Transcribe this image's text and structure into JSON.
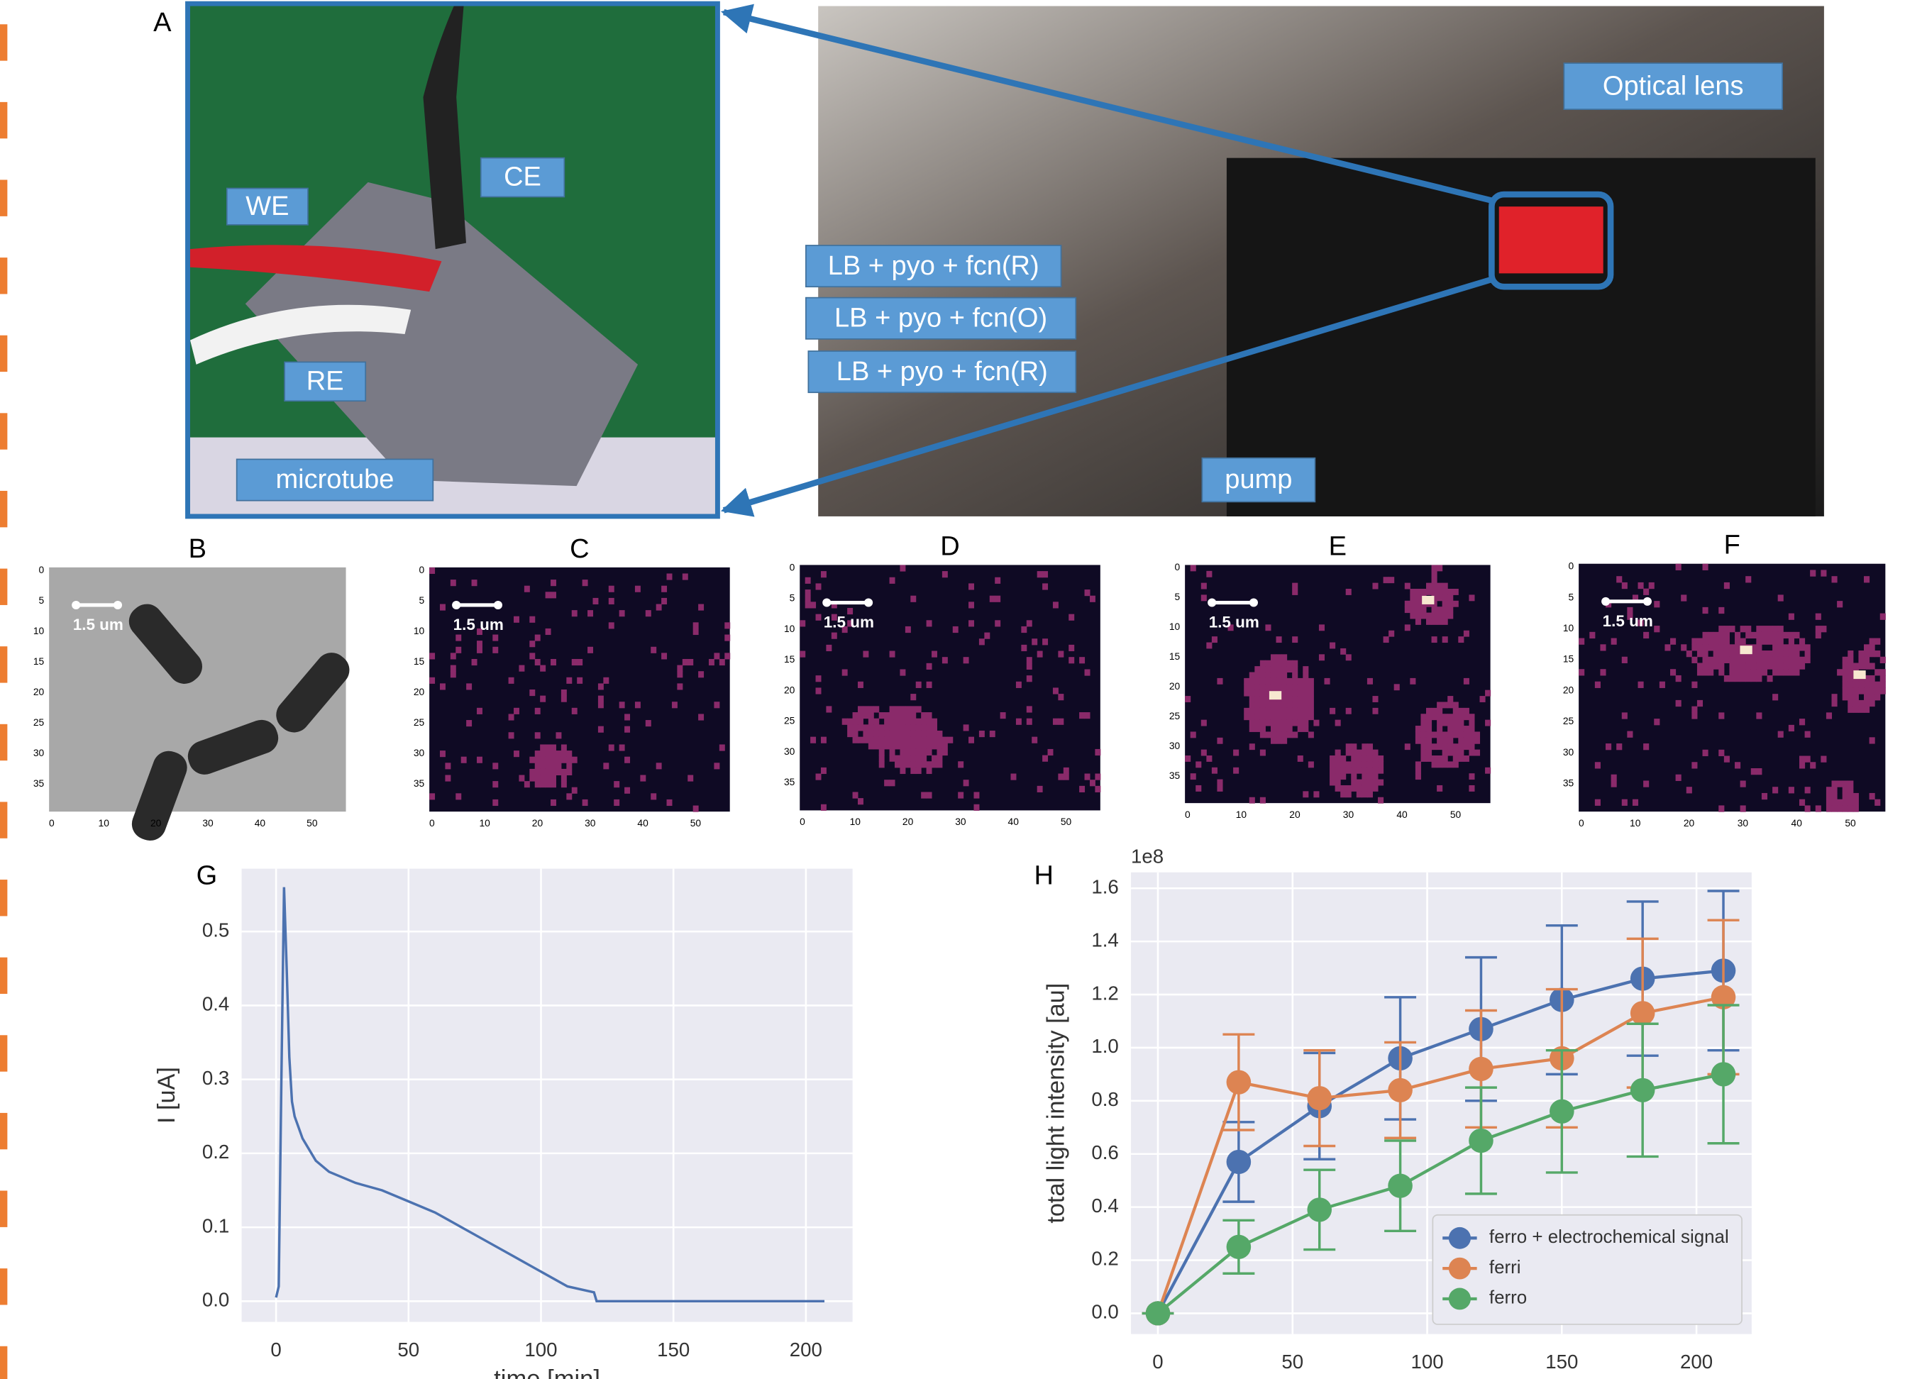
{
  "panel_a": {
    "letter": "A",
    "we": "WE",
    "ce": "CE",
    "re": "RE",
    "microtube": "microtube",
    "optical_lens": "Optical lens",
    "syringes": [
      "LB + pyo + fcn(R)",
      "LB + pyo + fcn(O)",
      "LB + pyo + fcn(R)"
    ],
    "pump": "pump"
  },
  "image_panels": {
    "letters": [
      "B",
      "C",
      "D",
      "E",
      "F"
    ],
    "scale_bar": "1.5 um",
    "xticks": [
      "0",
      "10",
      "20",
      "30",
      "40",
      "50"
    ],
    "yticks": [
      "0",
      "5",
      "10",
      "15",
      "20",
      "25",
      "30",
      "35"
    ]
  },
  "chart_data": [
    {
      "type": "line",
      "letter": "G",
      "xlabel": "time [min]",
      "ylabel": "I [uA]",
      "color": "#4c72b0",
      "x": [
        0,
        1,
        2,
        3,
        4,
        5,
        6,
        7,
        10,
        15,
        20,
        30,
        40,
        50,
        60,
        70,
        80,
        90,
        100,
        110,
        120,
        121,
        150,
        207
      ],
      "values": [
        0.005,
        0.02,
        0.3,
        0.56,
        0.45,
        0.33,
        0.27,
        0.25,
        0.22,
        0.19,
        0.175,
        0.16,
        0.15,
        0.135,
        0.12,
        0.1,
        0.08,
        0.06,
        0.04,
        0.02,
        0.012,
        0,
        0,
        0
      ],
      "xlim": [
        -13,
        217.6
      ],
      "ylim": [
        -0.028,
        0.585
      ],
      "xticks": [
        0,
        50,
        100,
        150,
        200
      ],
      "yticks": [
        {
          "value": 0,
          "label": "0.0"
        },
        0.1,
        0.2,
        0.3,
        0.4,
        0.5
      ],
      "grid": true
    },
    {
      "type": "errorbar",
      "letter": "H",
      "ylabel": "total light intensity [au]",
      "offset_label": "1e8",
      "legend": "lower right",
      "x": [
        0,
        30,
        60,
        90,
        120,
        150,
        180,
        210
      ],
      "series": [
        {
          "name": "ferro + electrochemical signal",
          "color": "#4c72b0",
          "values": [
            0,
            0.57,
            0.78,
            0.96,
            1.07,
            1.18,
            1.26,
            1.29
          ],
          "errors": [
            0,
            0.15,
            0.2,
            0.23,
            0.27,
            0.28,
            0.29,
            0.3
          ]
        },
        {
          "name": "ferri",
          "color": "#dd8452",
          "values": [
            0,
            0.87,
            0.81,
            0.84,
            0.92,
            0.96,
            1.13,
            1.19
          ],
          "errors": [
            0,
            0.18,
            0.18,
            0.18,
            0.22,
            0.26,
            0.28,
            0.29
          ]
        },
        {
          "name": "ferro",
          "color": "#55a868",
          "values": [
            0,
            0.25,
            0.39,
            0.48,
            0.65,
            0.76,
            0.84,
            0.9
          ],
          "errors": [
            0,
            0.1,
            0.15,
            0.17,
            0.2,
            0.23,
            0.25,
            0.26
          ]
        }
      ],
      "xlim": [
        -10,
        220.5
      ],
      "ylim": [
        -0.078,
        1.66
      ],
      "xticks": [
        0,
        50,
        100,
        150,
        200
      ],
      "yticks": [
        {
          "value": 0,
          "label": "0.0"
        },
        0.2,
        0.4,
        0.6,
        0.8,
        {
          "value": 1,
          "label": "1.0"
        },
        1.2,
        1.4,
        1.6
      ],
      "grid": true
    }
  ]
}
